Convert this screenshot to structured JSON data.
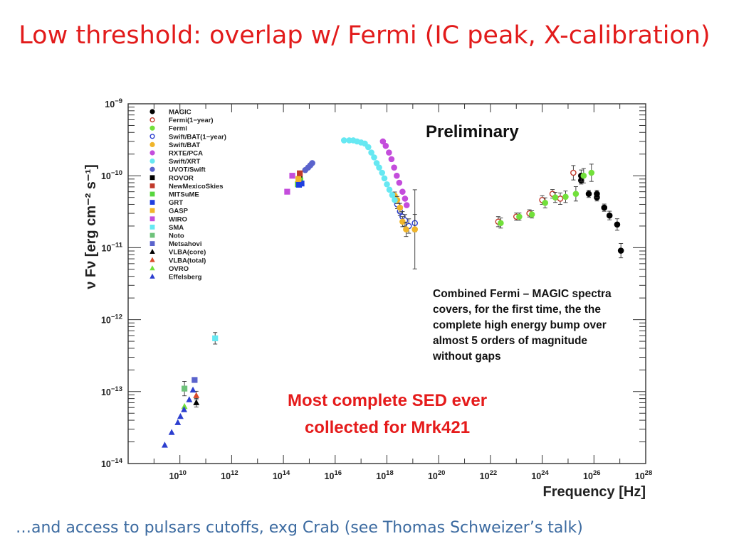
{
  "slide": {
    "title": "Low threshold: overlap w/ Fermi (IC peak, X-calibration)",
    "footer": "…and access to pulsars cutoffs, exg Crab (see Thomas Schweizer’s talk)"
  },
  "chart_data": {
    "type": "scatter",
    "xlabel": "Frequency [Hz]",
    "ylabel": "ν Fν [erg cm⁻² s⁻¹]",
    "xscale": "log",
    "yscale": "log",
    "xlim": [
      100000000.0,
      1e+28
    ],
    "ylim": [
      1e-14,
      1e-09
    ],
    "x_ticks": [
      {
        "value": 10000000000.0,
        "mantissa": "10",
        "exp": "10"
      },
      {
        "value": 1000000000000.0,
        "mantissa": "10",
        "exp": "12"
      },
      {
        "value": 100000000000000.0,
        "mantissa": "10",
        "exp": "14"
      },
      {
        "value": 1e+16,
        "mantissa": "10",
        "exp": "16"
      },
      {
        "value": 1e+18,
        "mantissa": "10",
        "exp": "18"
      },
      {
        "value": 1e+20,
        "mantissa": "10",
        "exp": "20"
      },
      {
        "value": 1e+22,
        "mantissa": "10",
        "exp": "22"
      },
      {
        "value": 1e+24,
        "mantissa": "10",
        "exp": "24"
      },
      {
        "value": 1e+26,
        "mantissa": "10",
        "exp": "26"
      },
      {
        "value": 1e+28,
        "mantissa": "10",
        "exp": "28"
      }
    ],
    "y_ticks": [
      {
        "value": 1e-09,
        "mantissa": "10",
        "exp": "−9"
      },
      {
        "value": 1e-10,
        "mantissa": "10",
        "exp": "−10"
      },
      {
        "value": 1e-11,
        "mantissa": "10",
        "exp": "−11"
      },
      {
        "value": 1e-12,
        "mantissa": "10",
        "exp": "−12"
      },
      {
        "value": 1e-13,
        "mantissa": "10",
        "exp": "−13"
      },
      {
        "value": 1e-14,
        "mantissa": "10",
        "exp": "−14"
      }
    ],
    "grid": false,
    "legend_position": "top-left",
    "annotations": {
      "preliminary": "Preliminary",
      "note_lines": [
        "Combined Fermi – MAGIC spectra",
        "covers, for the first time, the the",
        "complete high energy bump over",
        "almost  5 orders of magnitude",
        "without gaps"
      ],
      "highlight_lines": [
        "Most complete SED ever",
        "collected for Mrk421"
      ]
    },
    "series": [
      {
        "name": "MAGIC",
        "marker": "circle",
        "filled": true,
        "color": "#000000",
        "points": [
          [
            3.2e+25,
            8.6e-11
          ],
          [
            3.2e+25,
            1e-10
          ],
          [
            6.3e+25,
            5.6e-11
          ],
          [
            1.3e+26,
            5e-11
          ],
          [
            1.3e+26,
            5.6e-11
          ],
          [
            2.5e+26,
            3.6e-11
          ],
          [
            4e+26,
            2.8e-11
          ],
          [
            7.9e+26,
            2.1e-11
          ],
          [
            1.1e+27,
            9.1e-12
          ]
        ],
        "err": [
          0.05,
          0.08,
          0.05,
          0.05,
          0.05,
          0.05,
          0.06,
          0.08,
          0.1
        ]
      },
      {
        "name": "Fermi(1−year)",
        "marker": "circle",
        "filled": false,
        "color": "#c0392b",
        "points": [
          [
            2e+22,
            2.3e-11
          ],
          [
            1e+23,
            2.7e-11
          ],
          [
            3.2e+23,
            3e-11
          ],
          [
            1e+24,
            4.6e-11
          ],
          [
            2.5e+24,
            5.6e-11
          ],
          [
            5e+24,
            4.8e-11
          ],
          [
            1.6e+25,
            1.1e-10
          ]
        ],
        "err": [
          0.07,
          0.05,
          0.05,
          0.06,
          0.06,
          0.08,
          0.1
        ]
      },
      {
        "name": "Fermi",
        "marker": "circle",
        "filled": true,
        "color": "#72e03b",
        "points": [
          [
            2.5e+22,
            2.2e-11
          ],
          [
            1.3e+23,
            2.7e-11
          ],
          [
            4e+23,
            2.9e-11
          ],
          [
            1.3e+24,
            4.2e-11
          ],
          [
            3.2e+24,
            5e-11
          ],
          [
            8e+24,
            5.1e-11
          ],
          [
            2e+25,
            5.6e-11
          ],
          [
            4e+25,
            1e-10
          ],
          [
            8e+25,
            1.1e-10
          ]
        ],
        "err": [
          0.07,
          0.05,
          0.05,
          0.07,
          0.07,
          0.08,
          0.1,
          0.1,
          0.12
        ]
      },
      {
        "name": "Swift/BAT(1−year)",
        "marker": "circle",
        "filled": false,
        "color": "#2c3fcf",
        "points": [
          [
            2.5e+18,
            4e-11
          ],
          [
            3.2e+18,
            3.2e-11
          ],
          [
            4e+18,
            2.7e-11
          ],
          [
            5e+18,
            2.4e-11
          ],
          [
            7e+18,
            2e-11
          ],
          [
            1.2e+19,
            2.2e-11
          ]
        ],
        "err": [
          0.06,
          0.06,
          0.07,
          0.08,
          0.1,
          0.12
        ]
      },
      {
        "name": "Swift/BAT",
        "marker": "circle",
        "filled": true,
        "color": "#f0b52a",
        "points": [
          [
            2e+18,
            5.3e-11
          ],
          [
            2.5e+18,
            4.6e-11
          ],
          [
            3.2e+18,
            3.6e-11
          ],
          [
            4e+18,
            2.3e-11
          ],
          [
            5.5e+18,
            1.8e-11
          ],
          [
            1.2e+19,
            1.8e-11
          ]
        ],
        "err": [
          0.05,
          0.05,
          0.06,
          0.07,
          0.1,
          0.55
        ]
      },
      {
        "name": "RXTE/PCA",
        "marker": "circle",
        "filled": true,
        "color": "#c44ddc",
        "points": [
          [
            7e+17,
            3e-10
          ],
          [
            9e+17,
            2.6e-10
          ],
          [
            1.2e+18,
            2.1e-10
          ],
          [
            1.5e+18,
            1.7e-10
          ],
          [
            1.9e+18,
            1.3e-10
          ],
          [
            2.4e+18,
            1e-10
          ],
          [
            3e+18,
            8e-11
          ],
          [
            4e+18,
            6e-11
          ],
          [
            5e+18,
            4.8e-11
          ],
          [
            5.8e+18,
            3.9e-11
          ]
        ],
        "err": []
      },
      {
        "name": "Swift/XRT",
        "marker": "circle",
        "filled": true,
        "color": "#66e8f2",
        "points": [
          [
            2.2e+16,
            3.1e-10
          ],
          [
            3.5e+16,
            3.1e-10
          ],
          [
            5e+16,
            3.1e-10
          ],
          [
            7e+16,
            3e-10
          ],
          [
            1e+17,
            2.9e-10
          ],
          [
            1.4e+17,
            2.8e-10
          ],
          [
            1.9e+17,
            2.5e-10
          ],
          [
            2.5e+17,
            2.1e-10
          ],
          [
            3.2e+17,
            1.8e-10
          ],
          [
            4e+17,
            1.5e-10
          ],
          [
            5e+17,
            1.3e-10
          ],
          [
            6.5e+17,
            1.1e-10
          ],
          [
            8e+17,
            9.2e-11
          ],
          [
            1e+18,
            7.6e-11
          ],
          [
            1.25e+18,
            6.4e-11
          ],
          [
            1.6e+18,
            5.4e-11
          ],
          [
            2e+18,
            4.6e-11
          ]
        ],
        "err": []
      },
      {
        "name": "UVOT/Swift",
        "marker": "circle",
        "filled": true,
        "color": "#5a63cc",
        "points": [
          [
            700000000000000.0,
            1.2e-10
          ],
          [
            900000000000000.0,
            1.3e-10
          ],
          [
            1100000000000000.0,
            1.4e-10
          ],
          [
            1300000000000000.0,
            1.5e-10
          ]
        ],
        "err": []
      },
      {
        "name": "ROVOR",
        "marker": "square",
        "filled": true,
        "color": "#000000",
        "points": [
          [
            420000000000000.0,
            9e-11
          ]
        ],
        "err": []
      },
      {
        "name": "NewMexicoSkies",
        "marker": "square",
        "filled": true,
        "color": "#c0392b",
        "points": [
          [
            430000000000000.0,
            1.08e-10
          ]
        ],
        "err": []
      },
      {
        "name": "MITSuME",
        "marker": "square",
        "filled": true,
        "color": "#57d63e",
        "points": [
          [
            360000000000000.0,
            7.6e-11
          ],
          [
            450000000000000.0,
            8.6e-11
          ]
        ],
        "err": []
      },
      {
        "name": "GRT",
        "marker": "square",
        "filled": true,
        "color": "#1f3fe0",
        "points": [
          [
            400000000000000.0,
            7.5e-11
          ],
          [
            500000000000000.0,
            7.8e-11
          ]
        ],
        "err": []
      },
      {
        "name": "GASP",
        "marker": "square",
        "filled": true,
        "color": "#f0b52a",
        "points": [
          [
            380000000000000.0,
            9e-11
          ]
        ],
        "err": []
      },
      {
        "name": "WIRO",
        "marker": "square",
        "filled": true,
        "color": "#c44ddc",
        "points": [
          [
            140000000000000.0,
            6e-11
          ],
          [
            220000000000000.0,
            1e-10
          ]
        ],
        "err": []
      },
      {
        "name": "SMA",
        "marker": "square",
        "filled": true,
        "color": "#66e8f2",
        "points": [
          [
            230000000000.0,
            5.5e-13
          ]
        ],
        "err": [
          0.08
        ]
      },
      {
        "name": "Noto",
        "marker": "square",
        "filled": true,
        "color": "#6ec27a",
        "points": [
          [
            15000000000.0,
            1.1e-13
          ]
        ],
        "err": [
          0.1
        ]
      },
      {
        "name": "Metsahovi",
        "marker": "square",
        "filled": true,
        "color": "#5a63cc",
        "points": [
          [
            37000000000.0,
            1.45e-13
          ]
        ],
        "err": []
      },
      {
        "name": "VLBA(core)",
        "marker": "triangle",
        "filled": true,
        "color": "#000000",
        "points": [
          [
            43000000000.0,
            7e-14
          ]
        ],
        "err": [
          0.06
        ]
      },
      {
        "name": "VLBA(total)",
        "marker": "triangle",
        "filled": true,
        "color": "#d94a2a",
        "points": [
          [
            43000000000.0,
            8.8e-14
          ]
        ],
        "err": [
          0.06
        ]
      },
      {
        "name": "OVRO",
        "marker": "triangle",
        "filled": true,
        "color": "#72e03b",
        "points": [
          [
            15000000000.0,
            6.2e-14
          ]
        ],
        "err": []
      },
      {
        "name": "Effelsberg",
        "marker": "triangle",
        "filled": true,
        "color": "#2c3fcf",
        "points": [
          [
            2600000000.0,
            1.8e-14
          ],
          [
            4800000000.0,
            2.7e-14
          ],
          [
            8300000000.0,
            3.7e-14
          ],
          [
            10500000000.0,
            4.5e-14
          ],
          [
            14500000000.0,
            5.6e-14
          ],
          [
            23000000000.0,
            7.7e-14
          ],
          [
            32000000000.0,
            1.05e-13
          ]
        ],
        "err": []
      }
    ]
  }
}
